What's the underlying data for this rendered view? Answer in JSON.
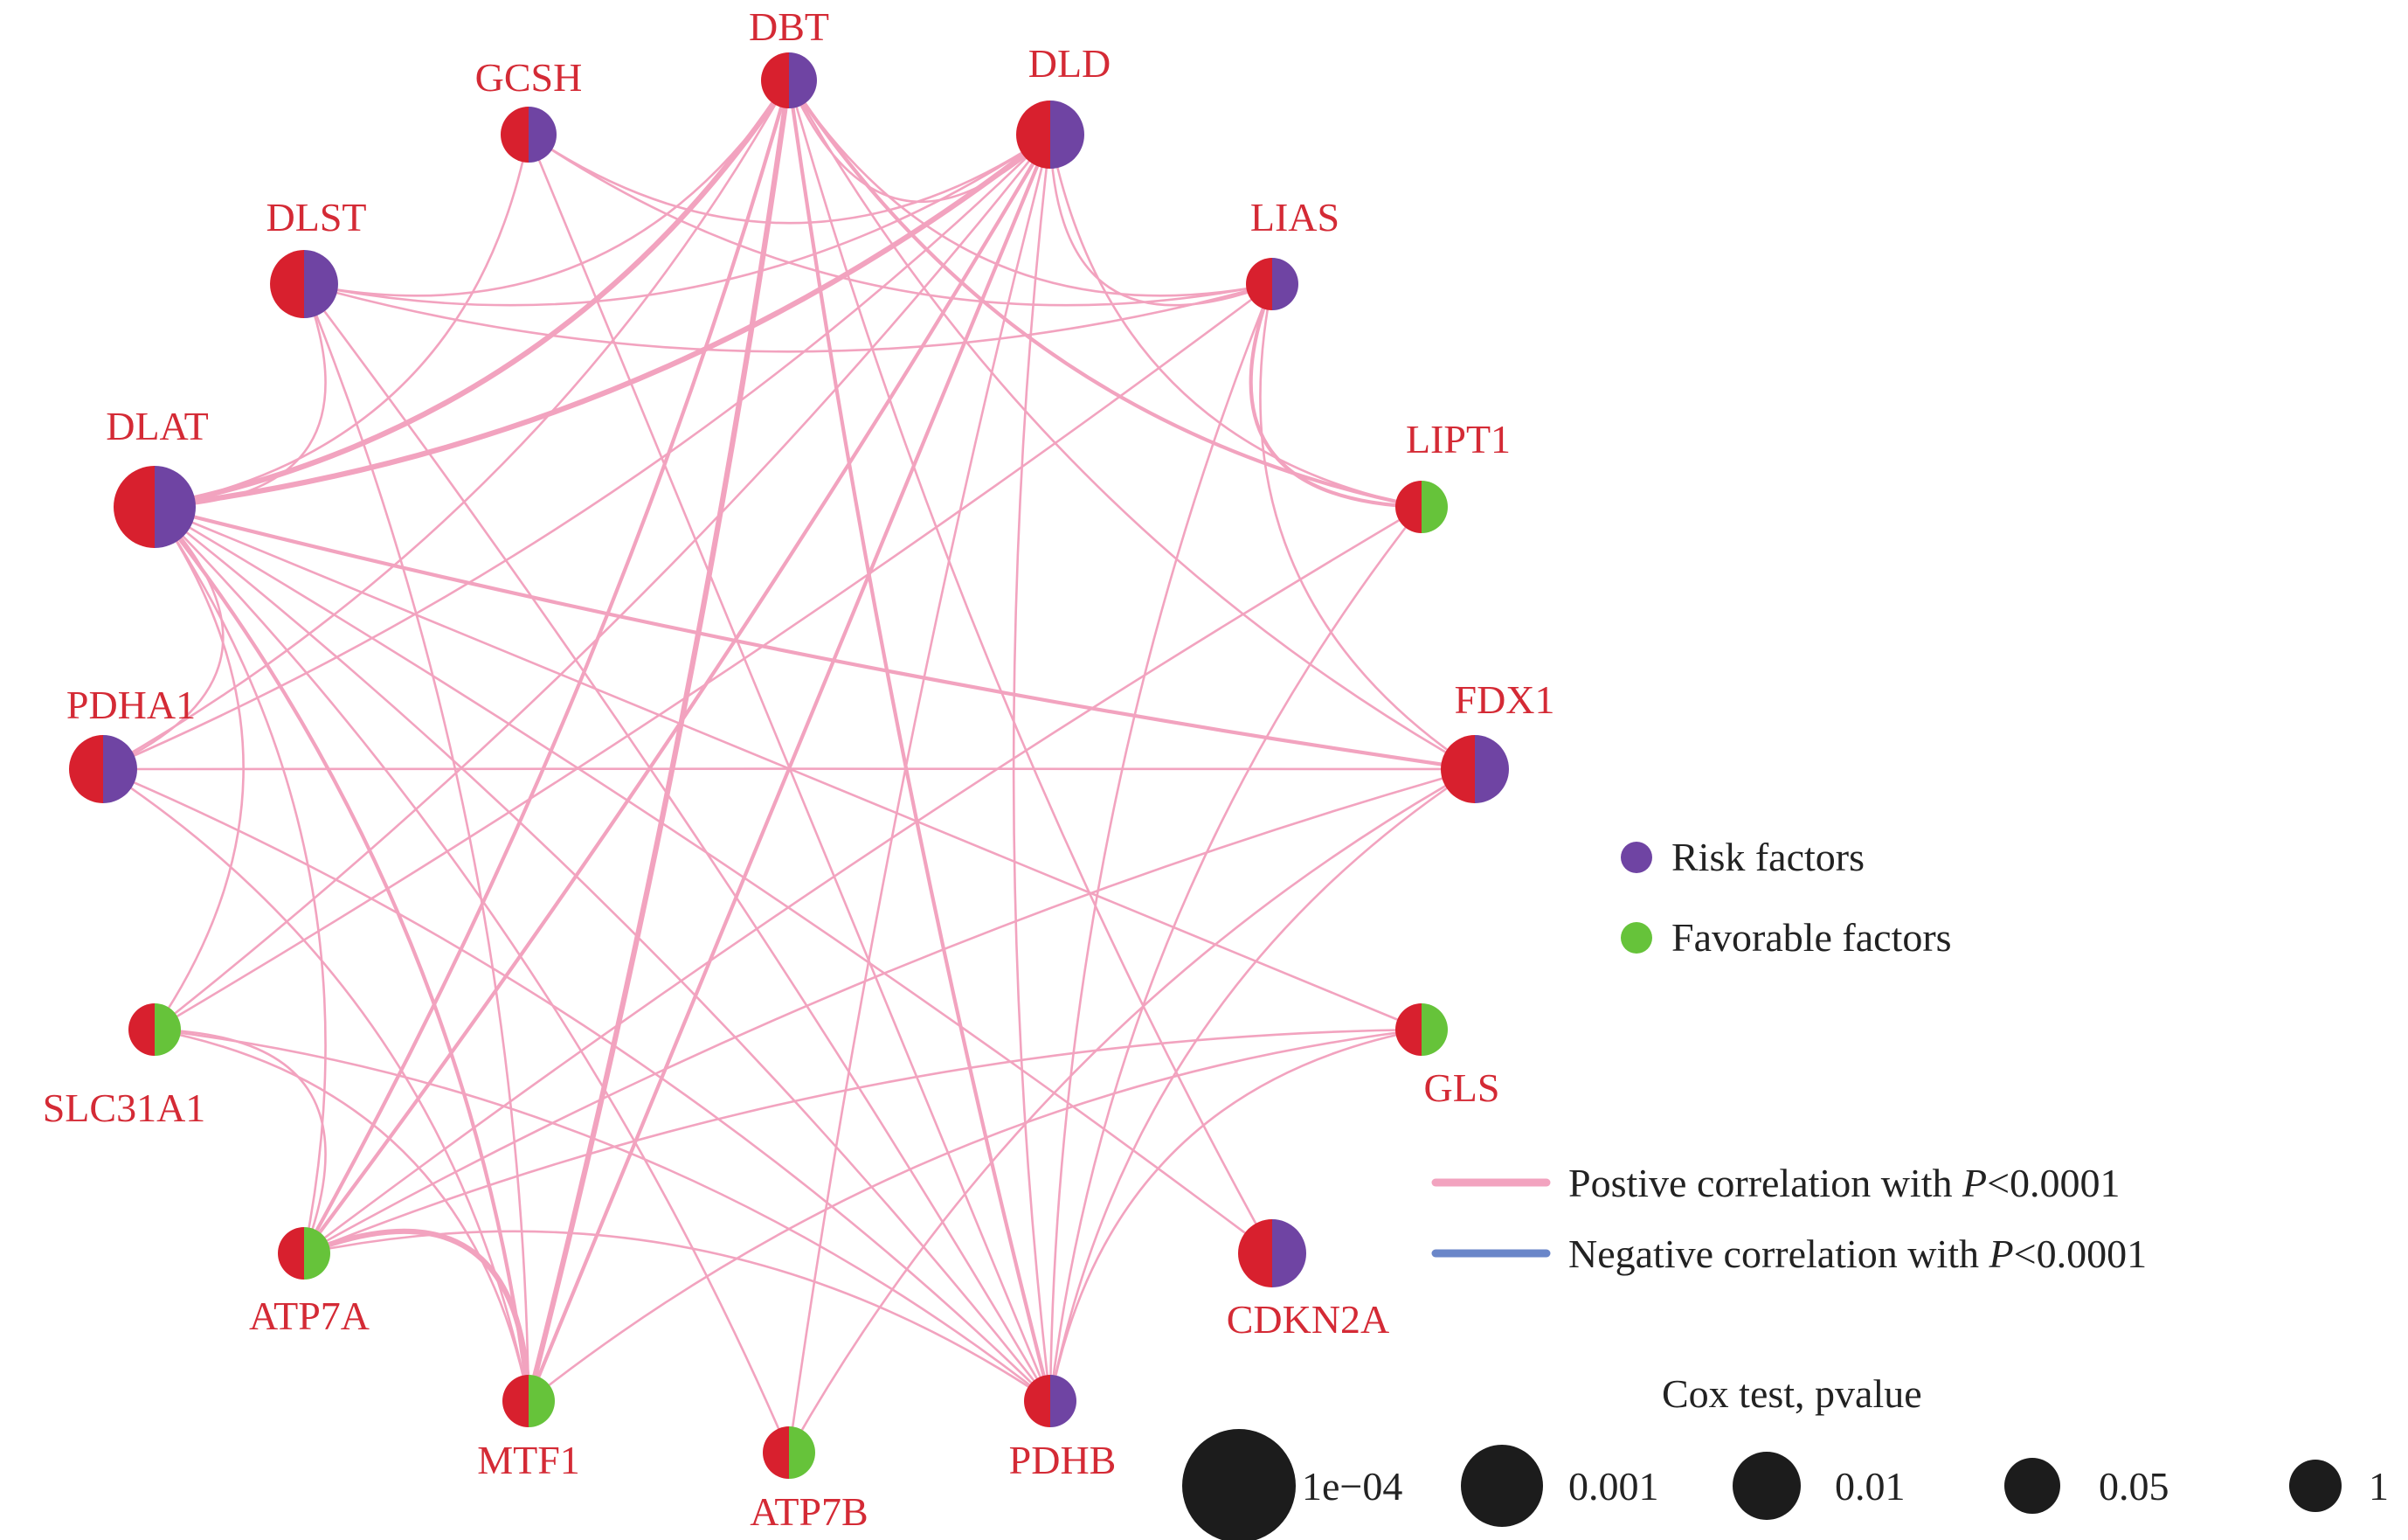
{
  "colors": {
    "left_half": "#d8202e",
    "risk": "#6f44a3",
    "favorable": "#66c33a",
    "positive_edge": "#f2a3bf",
    "negative_edge": "#6a86c9",
    "cox_circle": "#1c1c1c",
    "label": "#d42a35",
    "legend_text": "#222222"
  },
  "nodes": [
    {
      "id": "GCSH",
      "label": "GCSH",
      "type": "risk",
      "size_key": "0.05"
    },
    {
      "id": "DBT",
      "label": "DBT",
      "type": "risk",
      "size_key": "0.05"
    },
    {
      "id": "DLD",
      "label": "DLD",
      "type": "risk",
      "size_key": "0.01"
    },
    {
      "id": "LIAS",
      "label": "LIAS",
      "type": "risk",
      "size_key": "1"
    },
    {
      "id": "DLST",
      "label": "DLST",
      "type": "risk",
      "size_key": "0.01"
    },
    {
      "id": "DLAT",
      "label": "DLAT",
      "type": "risk",
      "size_key": "0.001"
    },
    {
      "id": "LIPT1",
      "label": "LIPT1",
      "type": "favorable",
      "size_key": "1"
    },
    {
      "id": "PDHA1",
      "label": "PDHA1",
      "type": "risk",
      "size_key": "0.01"
    },
    {
      "id": "FDX1",
      "label": "FDX1",
      "type": "risk",
      "size_key": "0.01"
    },
    {
      "id": "SLC31A1",
      "label": "SLC31A1",
      "type": "favorable",
      "size_key": "1"
    },
    {
      "id": "GLS",
      "label": "GLS",
      "type": "favorable",
      "size_key": "1"
    },
    {
      "id": "ATP7A",
      "label": "ATP7A",
      "type": "favorable",
      "size_key": "1"
    },
    {
      "id": "CDKN2A",
      "label": "CDKN2A",
      "type": "risk",
      "size_key": "0.01"
    },
    {
      "id": "MTF1",
      "label": "MTF1",
      "type": "favorable",
      "size_key": "1"
    },
    {
      "id": "ATP7B",
      "label": "ATP7B",
      "type": "favorable",
      "size_key": "1"
    },
    {
      "id": "PDHB",
      "label": "PDHB",
      "type": "risk",
      "size_key": "1"
    }
  ],
  "edges": [
    {
      "source": "DBT",
      "target": "DLAT",
      "weight": "thick"
    },
    {
      "source": "DBT",
      "target": "PDHB",
      "weight": "medium"
    },
    {
      "source": "DBT",
      "target": "MTF1",
      "weight": "thick"
    },
    {
      "source": "DBT",
      "target": "ATP7A",
      "weight": "medium"
    },
    {
      "source": "DBT",
      "target": "LIAS",
      "weight": "thin"
    },
    {
      "source": "DBT",
      "target": "LIPT1",
      "weight": "medium"
    },
    {
      "source": "DBT",
      "target": "FDX1",
      "weight": "thin"
    },
    {
      "source": "DBT",
      "target": "DLST",
      "weight": "thin"
    },
    {
      "source": "DBT",
      "target": "PDHA1",
      "weight": "thin"
    },
    {
      "source": "DBT",
      "target": "DLD",
      "weight": "thin"
    },
    {
      "source": "DBT",
      "target": "CDKN2A",
      "weight": "thin"
    },
    {
      "source": "DLD",
      "target": "DLAT",
      "weight": "thick"
    },
    {
      "source": "DLD",
      "target": "MTF1",
      "weight": "medium"
    },
    {
      "source": "DLD",
      "target": "ATP7A",
      "weight": "medium"
    },
    {
      "source": "DLD",
      "target": "PDHB",
      "weight": "thin"
    },
    {
      "source": "DLD",
      "target": "SLC31A1",
      "weight": "thin"
    },
    {
      "source": "DLD",
      "target": "PDHA1",
      "weight": "thin"
    },
    {
      "source": "DLD",
      "target": "DLST",
      "weight": "thin"
    },
    {
      "source": "DLD",
      "target": "GCSH",
      "weight": "thin"
    },
    {
      "source": "DLD",
      "target": "LIAS",
      "weight": "thin"
    },
    {
      "source": "DLD",
      "target": "LIPT1",
      "weight": "thin"
    },
    {
      "source": "DLD",
      "target": "ATP7B",
      "weight": "thin"
    },
    {
      "source": "GCSH",
      "target": "DLAT",
      "weight": "thin"
    },
    {
      "source": "GCSH",
      "target": "LIAS",
      "weight": "thin"
    },
    {
      "source": "GCSH",
      "target": "PDHB",
      "weight": "thin"
    },
    {
      "source": "DLST",
      "target": "DLAT",
      "weight": "thin"
    },
    {
      "source": "DLST",
      "target": "LIAS",
      "weight": "thin"
    },
    {
      "source": "DLST",
      "target": "PDHB",
      "weight": "thin"
    },
    {
      "source": "DLST",
      "target": "MTF1",
      "weight": "thin"
    },
    {
      "source": "DLAT",
      "target": "PDHA1",
      "weight": "thin"
    },
    {
      "source": "DLAT",
      "target": "FDX1",
      "weight": "medium"
    },
    {
      "source": "DLAT",
      "target": "MTF1",
      "weight": "medium"
    },
    {
      "source": "DLAT",
      "target": "ATP7A",
      "weight": "thin"
    },
    {
      "source": "DLAT",
      "target": "PDHB",
      "weight": "thin"
    },
    {
      "source": "DLAT",
      "target": "CDKN2A",
      "weight": "thin"
    },
    {
      "source": "DLAT",
      "target": "ATP7B",
      "weight": "thin"
    },
    {
      "source": "DLAT",
      "target": "SLC31A1",
      "weight": "thin"
    },
    {
      "source": "DLAT",
      "target": "GLS",
      "weight": "thin"
    },
    {
      "source": "LIAS",
      "target": "LIPT1",
      "weight": "medium"
    },
    {
      "source": "LIAS",
      "target": "PDHB",
      "weight": "thin"
    },
    {
      "source": "LIAS",
      "target": "SLC31A1",
      "weight": "thin"
    },
    {
      "source": "LIAS",
      "target": "FDX1",
      "weight": "thin"
    },
    {
      "source": "LIPT1",
      "target": "ATP7A",
      "weight": "thin"
    },
    {
      "source": "LIPT1",
      "target": "PDHB",
      "weight": "thin"
    },
    {
      "source": "PDHA1",
      "target": "FDX1",
      "weight": "thin"
    },
    {
      "source": "PDHA1",
      "target": "PDHB",
      "weight": "thin"
    },
    {
      "source": "PDHA1",
      "target": "MTF1",
      "weight": "thin"
    },
    {
      "source": "FDX1",
      "target": "ATP7A",
      "weight": "thin"
    },
    {
      "source": "FDX1",
      "target": "PDHB",
      "weight": "thin"
    },
    {
      "source": "SLC31A1",
      "target": "ATP7A",
      "weight": "thin"
    },
    {
      "source": "SLC31A1",
      "target": "PDHB",
      "weight": "thin"
    },
    {
      "source": "SLC31A1",
      "target": "MTF1",
      "weight": "thin"
    },
    {
      "source": "GLS",
      "target": "ATP7A",
      "weight": "thin"
    },
    {
      "source": "GLS",
      "target": "MTF1",
      "weight": "thin"
    },
    {
      "source": "GLS",
      "target": "PDHB",
      "weight": "thin"
    },
    {
      "source": "ATP7A",
      "target": "MTF1",
      "weight": "thick"
    },
    {
      "source": "ATP7A",
      "target": "PDHB",
      "weight": "thin"
    },
    {
      "source": "ATP7B",
      "target": "FDX1",
      "weight": "thin"
    }
  ],
  "legend": {
    "risk_label": "Risk factors",
    "favorable_label": "Favorable factors",
    "positive_prefix": "Postive correlation with ",
    "negative_prefix": "Negative correlation with ",
    "p_symbol": "P",
    "p_threshold": "<0.0001",
    "cox_title": "Cox test, pvalue",
    "cox_sizes": [
      {
        "label": "1e−04",
        "size_key": "1e-04"
      },
      {
        "label": "0.001",
        "size_key": "0.001"
      },
      {
        "label": "0.01",
        "size_key": "0.01"
      },
      {
        "label": "0.05",
        "size_key": "0.05"
      },
      {
        "label": "1",
        "size_key": "1"
      }
    ]
  }
}
